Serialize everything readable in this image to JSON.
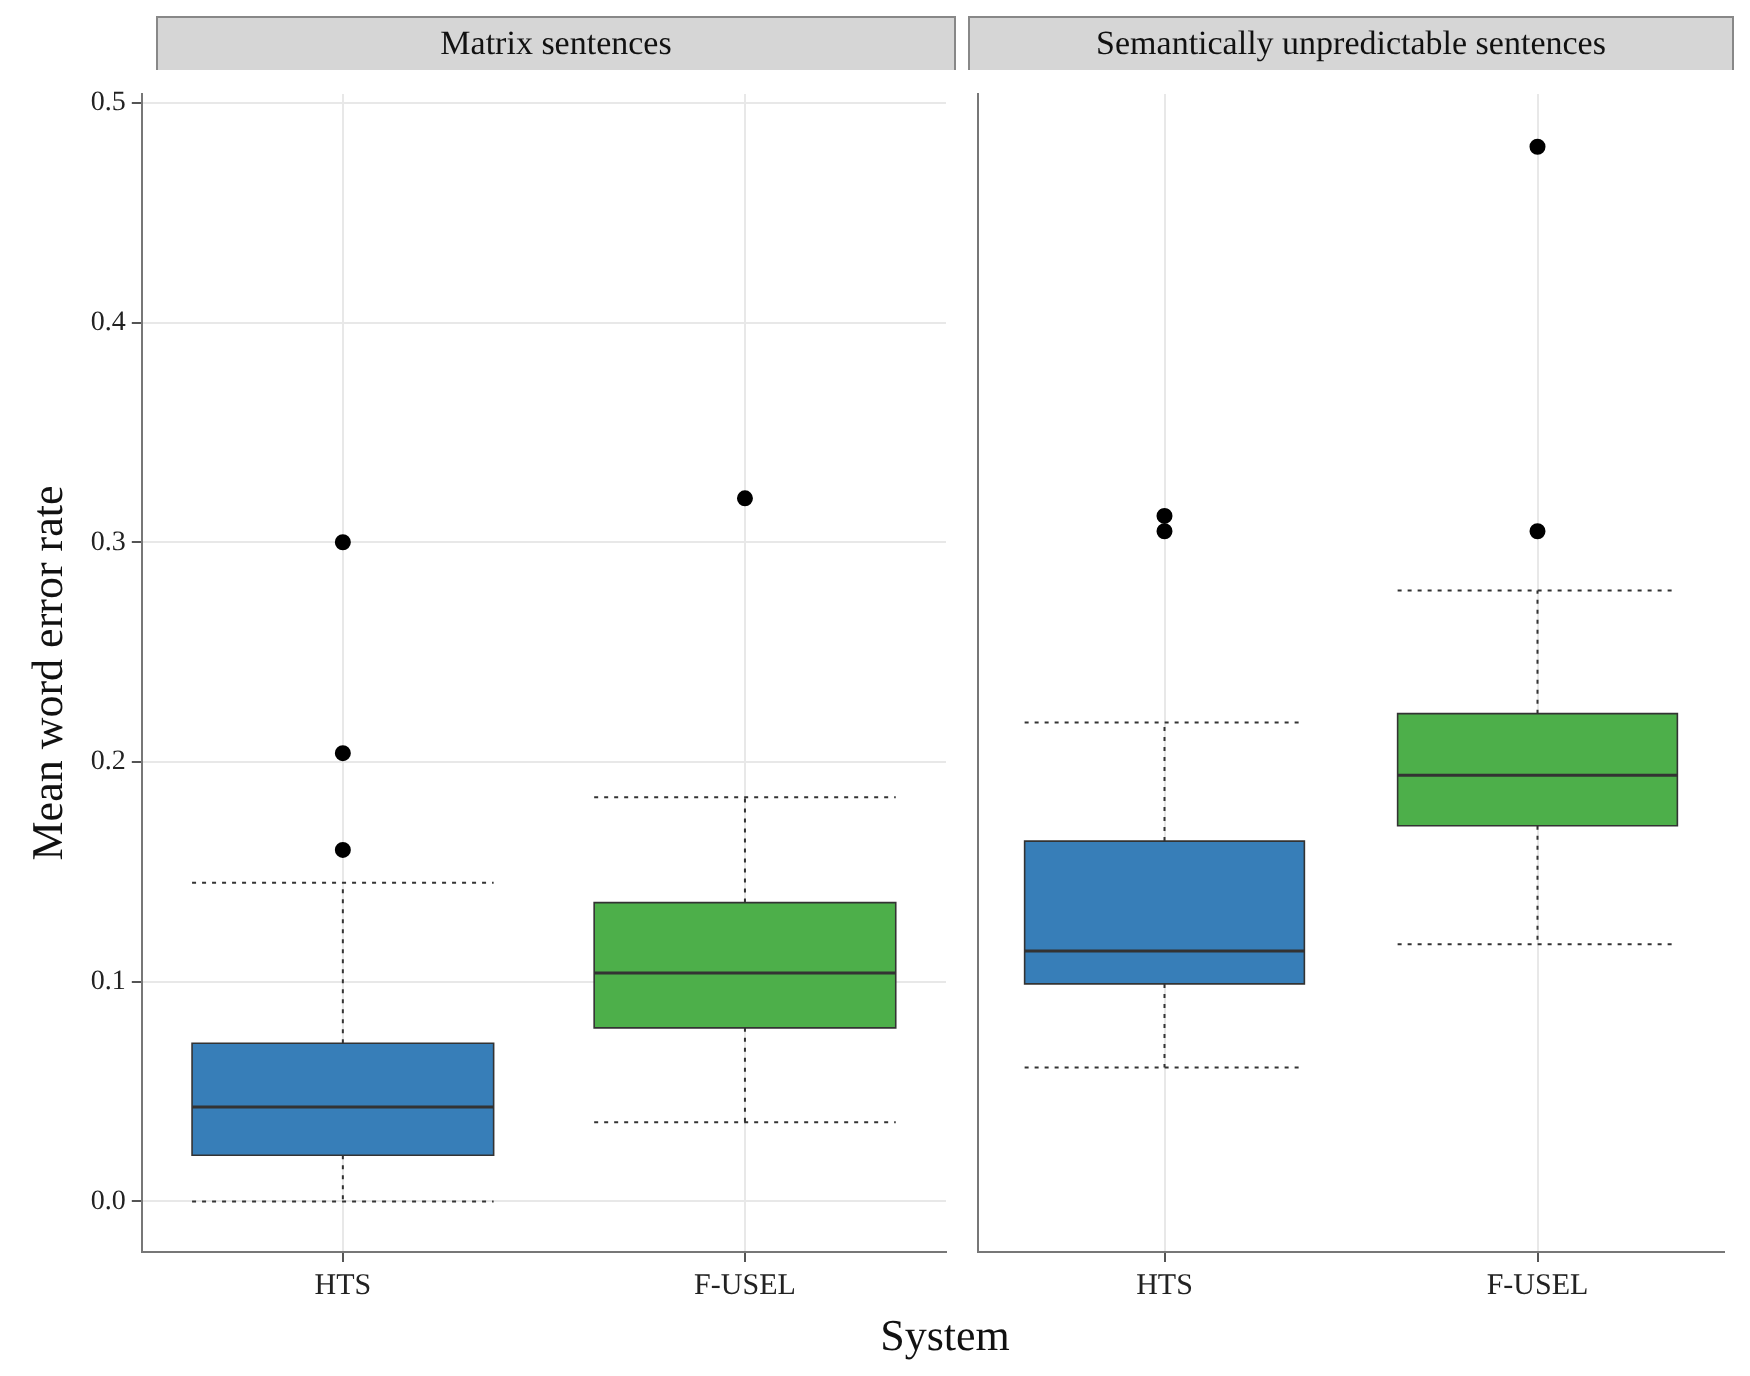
{
  "chart_data": [
    {
      "type": "box",
      "title": "Matrix sentences",
      "xlabel": "System",
      "ylabel": "Mean word error rate",
      "categories": [
        "HTS",
        "F-USEL"
      ],
      "colors": [
        "#377eb8",
        "#4daf4a"
      ],
      "boxes": [
        {
          "low": 0.0,
          "q1": 0.021,
          "median": 0.043,
          "q3": 0.072,
          "high": 0.145,
          "outliers": [
            0.16,
            0.204,
            0.3
          ]
        },
        {
          "low": 0.036,
          "q1": 0.079,
          "median": 0.104,
          "q3": 0.136,
          "high": 0.184,
          "outliers": [
            0.32
          ]
        }
      ],
      "ylim": [
        -0.023,
        0.504
      ],
      "yticks": [
        {
          "value": 0,
          "label": "0.0"
        },
        {
          "value": 0.1,
          "label": "0.1"
        },
        {
          "value": 0.2,
          "label": "0.2"
        },
        {
          "value": 0.3,
          "label": "0.3"
        },
        {
          "value": 0.4,
          "label": "0.4"
        },
        {
          "value": 0.5,
          "label": "0.5"
        }
      ],
      "grid": true
    },
    {
      "type": "box",
      "title": "Semantically unpredictable sentences",
      "categories": [
        "HTS",
        "F-USEL"
      ],
      "colors": [
        "#377eb8",
        "#4daf4a"
      ],
      "boxes": [
        {
          "low": 0.061,
          "q1": 0.099,
          "median": 0.114,
          "q3": 0.164,
          "high": 0.218,
          "outliers": [
            0.305,
            0.312
          ]
        },
        {
          "low": 0.117,
          "q1": 0.171,
          "median": 0.194,
          "q3": 0.222,
          "high": 0.278,
          "outliers": [
            0.305,
            0.48
          ]
        }
      ],
      "ylim": [
        -0.023,
        0.504
      ],
      "yticks": [
        {
          "value": 0,
          "label": null
        },
        {
          "value": 0.1,
          "label": null
        },
        {
          "value": 0.2,
          "label": null
        },
        {
          "value": 0.3,
          "label": null
        },
        {
          "value": 0.4,
          "label": null
        },
        {
          "value": 0.5,
          "label": null
        }
      ],
      "grid": true,
      "tick_labels": "x"
    }
  ]
}
